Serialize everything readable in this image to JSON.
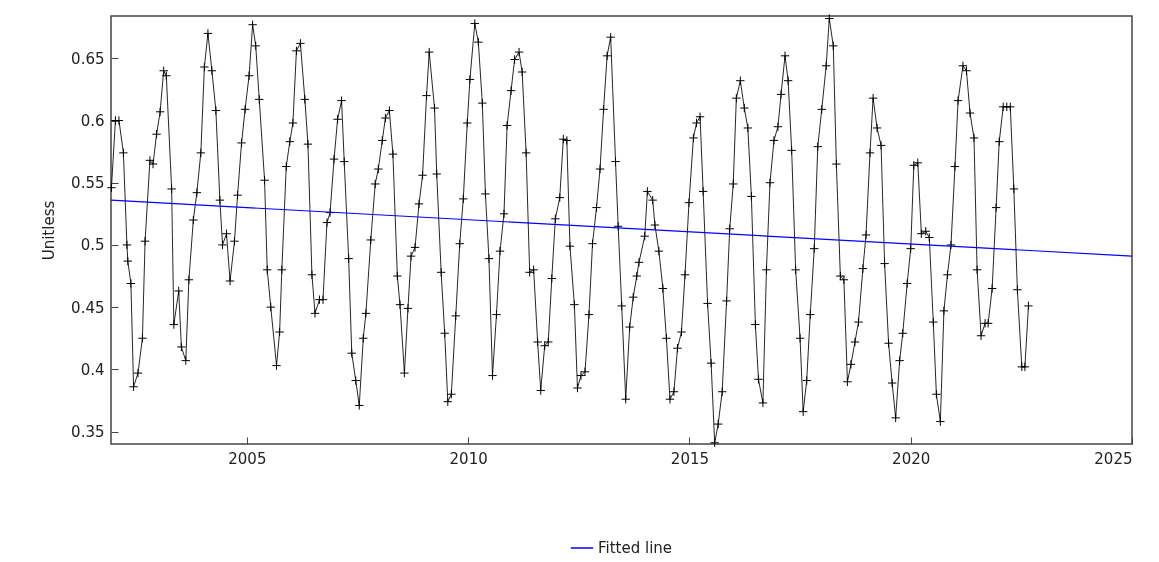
{
  "chart_data": {
    "type": "line",
    "ylabel": "Unitless",
    "xlim": [
      2001.93,
      2025
    ],
    "ylim": [
      0.34,
      0.684
    ],
    "xticks": [
      2005,
      2010,
      2015,
      2020,
      2025
    ],
    "yticks": [
      0.35,
      0.4,
      0.45,
      0.5,
      0.55,
      0.6,
      0.65
    ],
    "grid": false,
    "legend": "bottom",
    "marker": "cross",
    "series": [
      {
        "color": "#000000",
        "x": [
          2001.94,
          2002.03,
          2002.11,
          2002.21,
          2002.29,
          2002.31,
          2002.38,
          2002.44,
          2002.54,
          2002.64,
          2002.7,
          2002.81,
          2002.88,
          2002.96,
          2003.04,
          2003.12,
          2003.18,
          2003.3,
          2003.35,
          2003.46,
          2003.52,
          2003.62,
          2003.69,
          2003.79,
          2003.87,
          2003.96,
          2004.04,
          2004.12,
          2004.21,
          2004.3,
          2004.39,
          2004.45,
          2004.54,
          2004.62,
          2004.72,
          2004.79,
          2004.88,
          2004.96,
          2005.05,
          2005.13,
          2005.2,
          2005.28,
          2005.4,
          2005.46,
          2005.54,
          2005.67,
          2005.74,
          2005.79,
          2005.89,
          2005.97,
          2006.04,
          2006.12,
          2006.21,
          2006.31,
          2006.38,
          2006.47,
          2006.54,
          2006.64,
          2006.72,
          2006.81,
          2006.88,
          2006.97,
          2007.05,
          2007.14,
          2007.2,
          2007.3,
          2007.37,
          2007.46,
          2007.54,
          2007.63,
          2007.69,
          2007.8,
          2007.9,
          2007.97,
          2008.06,
          2008.13,
          2008.22,
          2008.3,
          2008.4,
          2008.46,
          2008.56,
          2008.64,
          2008.71,
          2008.8,
          2008.89,
          2008.97,
          2009.06,
          2009.12,
          2009.24,
          2009.29,
          2009.39,
          2009.47,
          2009.54,
          2009.62,
          2009.72,
          2009.81,
          2009.89,
          2009.98,
          2010.04,
          2010.15,
          2010.23,
          2010.32,
          2010.39,
          2010.47,
          2010.55,
          2010.64,
          2010.72,
          2010.81,
          2010.88,
          2010.97,
          2011.05,
          2011.15,
          2011.22,
          2011.31,
          2011.39,
          2011.48,
          2011.57,
          2011.64,
          2011.73,
          2011.81,
          2011.89,
          2011.97,
          2012.07,
          2012.15,
          2012.23,
          2012.3,
          2012.4,
          2012.47,
          2012.55,
          2012.64,
          2012.73,
          2012.81,
          2012.9,
          2012.98,
          2013.06,
          2013.14,
          2013.22,
          2013.33,
          2013.39,
          2013.47,
          2013.56,
          2013.65,
          2013.73,
          2013.81,
          2013.86,
          2013.99,
          2014.05,
          2014.17,
          2014.22,
          2014.31,
          2014.4,
          2014.48,
          2014.56,
          2014.65,
          2014.73,
          2014.82,
          2014.9,
          2014.99,
          2015.09,
          2015.16,
          2015.24,
          2015.31,
          2015.41,
          2015.49,
          2015.57,
          2015.65,
          2015.74,
          2015.84,
          2015.91,
          2015.99,
          2016.06,
          2016.15,
          2016.24,
          2016.32,
          2016.4,
          2016.49,
          2016.56,
          2016.66,
          2016.74,
          2016.82,
          2016.91,
          2017.0,
          2017.07,
          2017.16,
          2017.23,
          2017.31,
          2017.4,
          2017.5,
          2017.57,
          2017.65,
          2017.73,
          2017.82,
          2017.9,
          2017.99,
          2018.09,
          2018.16,
          2018.25,
          2018.32,
          2018.41,
          2018.49,
          2018.57,
          2018.65,
          2018.74,
          2018.82,
          2018.92,
          2018.99,
          2019.08,
          2019.15,
          2019.24,
          2019.33,
          2019.41,
          2019.5,
          2019.58,
          2019.66,
          2019.75,
          2019.82,
          2019.92,
          2020.0,
          2020.07,
          2020.16,
          2020.24,
          2020.34,
          2020.42,
          2020.51,
          2020.58,
          2020.67,
          2020.75,
          2020.83,
          2020.91,
          2021.0,
          2021.07,
          2021.18,
          2021.26,
          2021.34,
          2021.43,
          2021.5,
          2021.59,
          2021.68,
          2021.75,
          2021.84,
          2021.93,
          2022.0,
          2022.09,
          2022.17,
          2022.25,
          2022.33,
          2022.41,
          2022.51,
          2022.58,
          2022.66
        ],
        "values": [
          0.546,
          0.6,
          0.6,
          0.574,
          0.5,
          0.487,
          0.469,
          0.386,
          0.397,
          0.425,
          0.503,
          0.568,
          0.565,
          0.589,
          0.607,
          0.64,
          0.636,
          0.545,
          0.436,
          0.463,
          0.418,
          0.407,
          0.472,
          0.52,
          0.542,
          0.574,
          0.643,
          0.67,
          0.64,
          0.608,
          0.536,
          0.5,
          0.509,
          0.471,
          0.503,
          0.54,
          0.582,
          0.609,
          0.636,
          0.677,
          0.66,
          0.617,
          0.552,
          0.48,
          0.45,
          0.403,
          0.43,
          0.48,
          0.563,
          0.583,
          0.598,
          0.656,
          0.662,
          0.617,
          0.581,
          0.476,
          0.445,
          0.456,
          0.456,
          0.518,
          0.526,
          0.569,
          0.601,
          0.616,
          0.567,
          0.489,
          0.413,
          0.391,
          0.371,
          0.425,
          0.445,
          0.504,
          0.549,
          0.561,
          0.584,
          0.602,
          0.608,
          0.573,
          0.475,
          0.452,
          0.397,
          0.449,
          0.491,
          0.498,
          0.533,
          0.556,
          0.62,
          0.655,
          0.61,
          0.557,
          0.478,
          0.429,
          0.374,
          0.38,
          0.443,
          0.501,
          0.537,
          0.598,
          0.633,
          0.678,
          0.663,
          0.614,
          0.541,
          0.489,
          0.395,
          0.444,
          0.495,
          0.525,
          0.596,
          0.624,
          0.649,
          0.655,
          0.639,
          0.574,
          0.478,
          0.48,
          0.422,
          0.383,
          0.419,
          0.422,
          0.473,
          0.521,
          0.538,
          0.585,
          0.584,
          0.499,
          0.452,
          0.385,
          0.395,
          0.398,
          0.444,
          0.501,
          0.53,
          0.561,
          0.609,
          0.652,
          0.667,
          0.567,
          0.515,
          0.451,
          0.376,
          0.434,
          0.458,
          0.475,
          0.486,
          0.507,
          0.543,
          0.536,
          0.516,
          0.495,
          0.465,
          0.425,
          0.376,
          0.382,
          0.417,
          0.43,
          0.476,
          0.534,
          0.586,
          0.598,
          0.603,
          0.543,
          0.453,
          0.405,
          0.341,
          0.356,
          0.382,
          0.455,
          0.513,
          0.549,
          0.618,
          0.632,
          0.61,
          0.594,
          0.539,
          0.436,
          0.392,
          0.373,
          0.48,
          0.55,
          0.584,
          0.595,
          0.621,
          0.652,
          0.632,
          0.576,
          0.48,
          0.425,
          0.366,
          0.391,
          0.444,
          0.497,
          0.579,
          0.609,
          0.644,
          0.682,
          0.66,
          0.565,
          0.475,
          0.472,
          0.39,
          0.404,
          0.422,
          0.438,
          0.481,
          0.508,
          0.574,
          0.618,
          0.594,
          0.58,
          0.485,
          0.421,
          0.389,
          0.361,
          0.407,
          0.429,
          0.469,
          0.497,
          0.564,
          0.566,
          0.509,
          0.511,
          0.506,
          0.438,
          0.38,
          0.358,
          0.447,
          0.476,
          0.5,
          0.563,
          0.616,
          0.644,
          0.64,
          0.606,
          0.586,
          0.48,
          0.427,
          0.437,
          0.437,
          0.465,
          0.53,
          0.583,
          0.611,
          0.611,
          0.611,
          0.545,
          0.464,
          0.402,
          0.402,
          0.451
        ]
      },
      {
        "name": "Fitted line",
        "color": "#0000ff",
        "marker": "none",
        "x": [
          2001.93,
          2025
        ],
        "values": [
          0.536,
          0.491
        ]
      }
    ]
  }
}
